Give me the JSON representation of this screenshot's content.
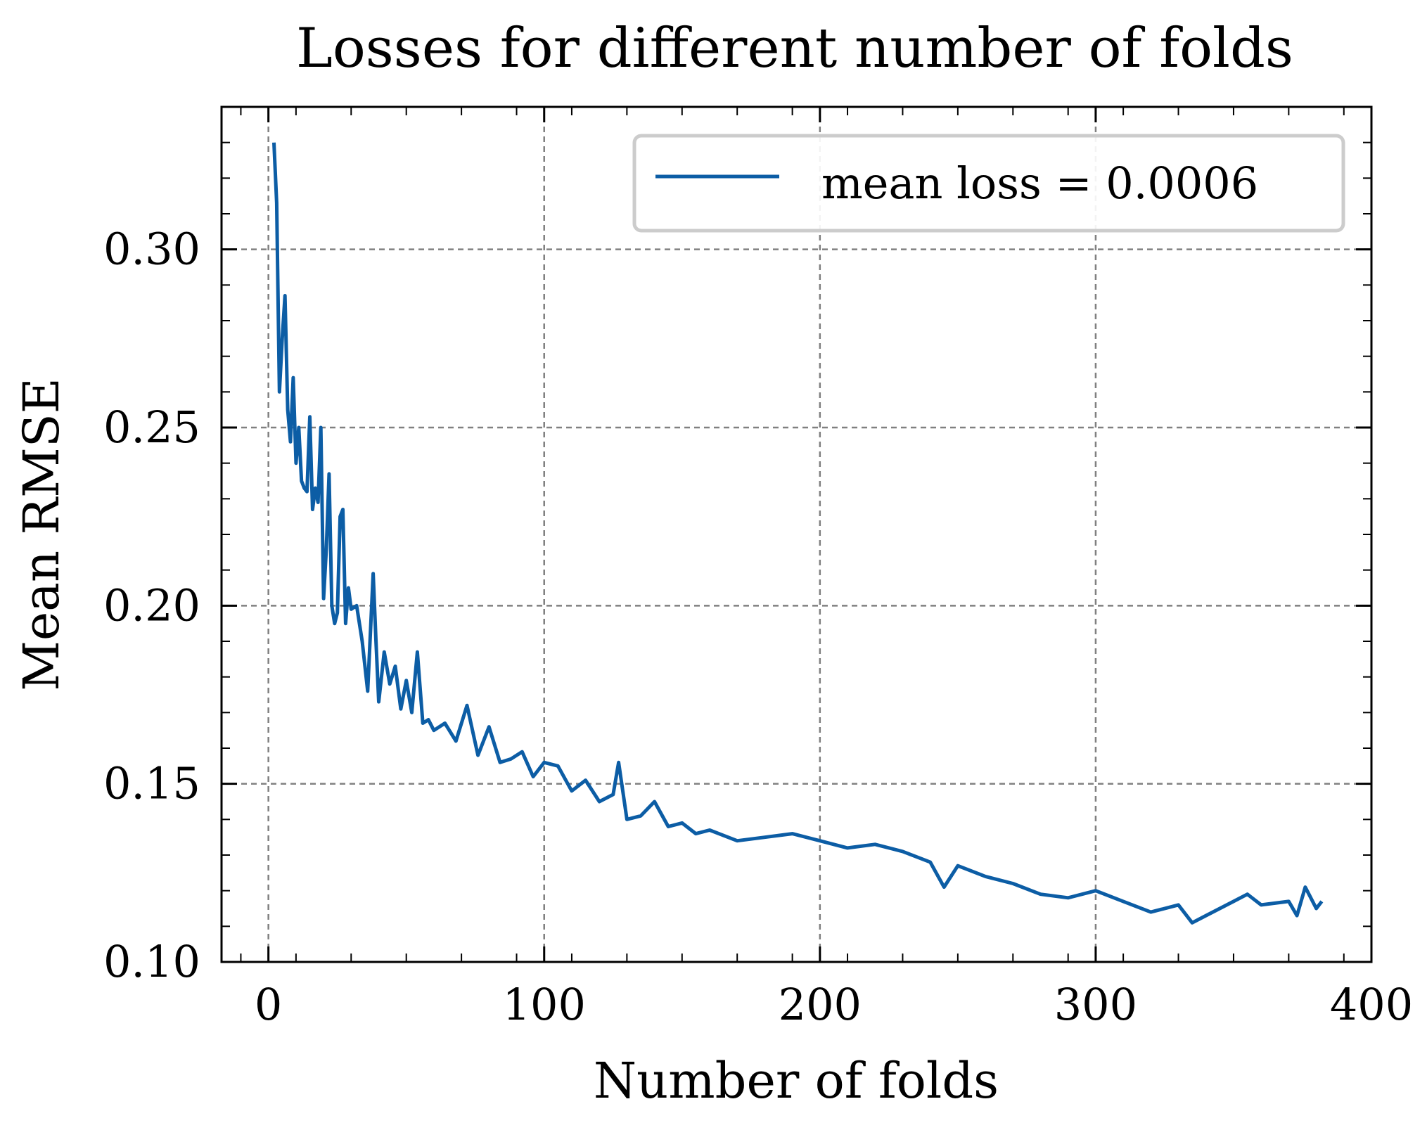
{
  "chart_data": {
    "type": "line",
    "title": "Losses for different number of folds",
    "xlabel": "Number of folds",
    "ylabel": "Mean RMSE",
    "xlim": [
      -17,
      400
    ],
    "ylim": [
      0.1,
      0.34
    ],
    "xticks": [
      0,
      100,
      200,
      300,
      400
    ],
    "xtick_labels": [
      "0",
      "100",
      "200",
      "300",
      "400"
    ],
    "yticks": [
      0.1,
      0.15,
      0.2,
      0.25,
      0.3
    ],
    "ytick_labels": [
      "0.10",
      "0.15",
      "0.20",
      "0.25",
      "0.30"
    ],
    "grid": true,
    "legend": {
      "position": "top-right"
    },
    "series": [
      {
        "name": "mean loss = 0.0006",
        "color": "#0c5da5",
        "x": [
          2,
          3,
          4,
          5,
          6,
          7,
          8,
          9,
          10,
          11,
          12,
          13,
          14,
          15,
          16,
          17,
          18,
          19,
          20,
          21,
          22,
          23,
          24,
          25,
          26,
          27,
          28,
          29,
          30,
          32,
          34,
          36,
          38,
          39,
          40,
          42,
          44,
          46,
          48,
          50,
          52,
          54,
          56,
          58,
          60,
          64,
          68,
          72,
          76,
          80,
          84,
          88,
          92,
          96,
          100,
          105,
          110,
          115,
          120,
          125,
          127,
          130,
          135,
          140,
          145,
          150,
          155,
          160,
          170,
          180,
          190,
          200,
          210,
          220,
          230,
          240,
          245,
          250,
          260,
          270,
          280,
          290,
          300,
          310,
          320,
          330,
          335,
          340,
          350,
          355,
          360,
          370,
          373,
          376,
          380,
          382
        ],
        "y": [
          0.33,
          0.313,
          0.26,
          0.275,
          0.287,
          0.255,
          0.246,
          0.264,
          0.24,
          0.25,
          0.235,
          0.233,
          0.232,
          0.253,
          0.227,
          0.233,
          0.229,
          0.25,
          0.202,
          0.216,
          0.237,
          0.2,
          0.195,
          0.198,
          0.225,
          0.227,
          0.195,
          0.205,
          0.199,
          0.2,
          0.19,
          0.176,
          0.209,
          0.19,
          0.173,
          0.187,
          0.178,
          0.183,
          0.171,
          0.179,
          0.17,
          0.187,
          0.167,
          0.168,
          0.165,
          0.167,
          0.162,
          0.172,
          0.158,
          0.166,
          0.156,
          0.157,
          0.159,
          0.152,
          0.156,
          0.155,
          0.148,
          0.151,
          0.145,
          0.147,
          0.156,
          0.14,
          0.141,
          0.145,
          0.138,
          0.139,
          0.136,
          0.137,
          0.134,
          0.135,
          0.136,
          0.134,
          0.132,
          0.133,
          0.131,
          0.128,
          0.121,
          0.127,
          0.124,
          0.122,
          0.119,
          0.118,
          0.12,
          0.117,
          0.114,
          0.116,
          0.111,
          0.113,
          0.117,
          0.119,
          0.116,
          0.117,
          0.113,
          0.121,
          0.115,
          0.117
        ]
      }
    ]
  }
}
